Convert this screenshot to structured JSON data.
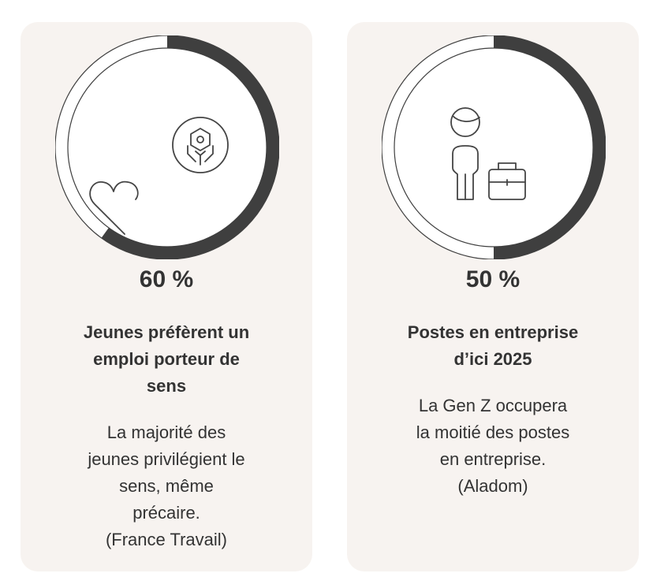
{
  "stats": [
    {
      "percent_value": 60,
      "percent_label": "60 %",
      "heading_lines": [
        "Jeunes préfèrent un",
        "emploi porteur de",
        "sens"
      ],
      "description_lines": [
        "La majorité des",
        "jeunes privilégient le",
        "sens, même",
        "précaire.",
        "(France Travail)"
      ],
      "icon": "heart-and-hands-icon"
    },
    {
      "percent_value": 50,
      "percent_label": "50 %",
      "heading_lines": [
        "Postes en entreprise",
        "d’ici 2025"
      ],
      "description_lines": [
        "La Gen Z occupera",
        "la moitié des postes",
        "en entreprise.",
        "(Aladom)"
      ],
      "icon": "person-with-briefcase-icon"
    }
  ],
  "colors": {
    "card_background": "#f7f3f0",
    "ring_fill": "#3f3f3f",
    "ring_track": "#ffffff",
    "text": "#333333"
  }
}
